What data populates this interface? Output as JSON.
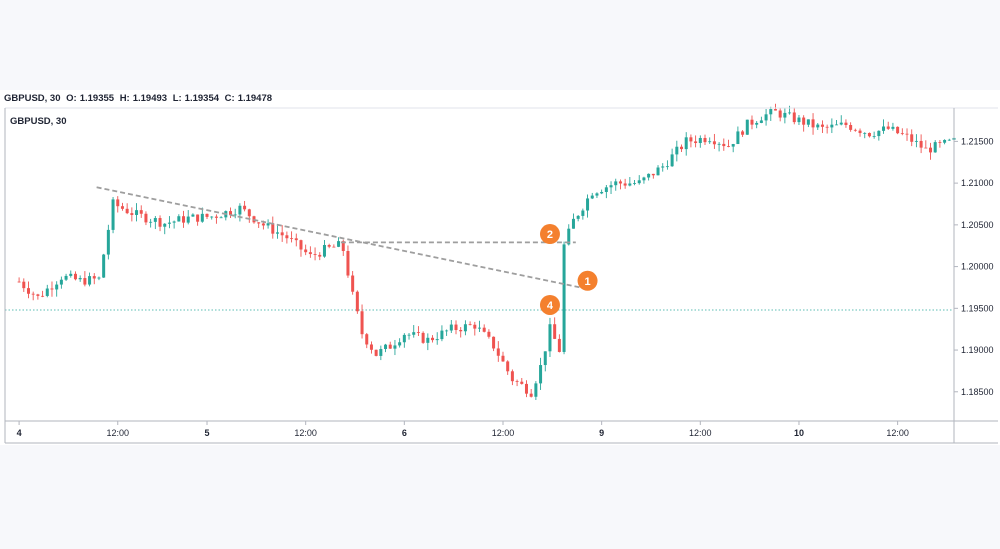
{
  "header": {
    "symbol": "GBPUSD, 30",
    "o_label": "O:",
    "o_value": "1.19355",
    "h_label": "H:",
    "h_value": "1.19493",
    "l_label": "L:",
    "l_value": "1.19354",
    "c_label": "C:",
    "c_value": "1.19478"
  },
  "colors": {
    "up": "#26a69a",
    "down": "#ef5350",
    "trend": "#9e9e9e",
    "marker": "#f4802e",
    "price_line": "#26a69a"
  },
  "chart_data": {
    "type": "candlestick",
    "title": "GBPUSD, 30",
    "ylim": [
      1.1815,
      1.219
    ],
    "y_ticks": [
      "1.18500",
      "1.19000",
      "1.19500",
      "1.20000",
      "1.20500",
      "1.21000",
      "1.21500"
    ],
    "x_ticks": [
      {
        "label": "4",
        "t": 0
      },
      {
        "label": "12:00",
        "t": 21
      },
      {
        "label": "5",
        "t": 40
      },
      {
        "label": "12:00",
        "t": 61
      },
      {
        "label": "6",
        "t": 82
      },
      {
        "label": "12:00",
        "t": 103
      },
      {
        "label": "9",
        "t": 124
      },
      {
        "label": "12:00",
        "t": 145
      },
      {
        "label": "10",
        "t": 166
      },
      {
        "label": "12:00",
        "t": 187
      }
    ],
    "t_range": [
      -3,
      199
    ],
    "price_line": 1.1948,
    "trend_lines": [
      {
        "from": [
          16.5,
          1.2095
        ],
        "to": [
          119.5,
          1.1975
        ],
        "style": "dashed"
      },
      {
        "from": [
          68.5,
          1.2029
        ],
        "to": [
          118.5,
          1.2029
        ],
        "style": "dashed"
      }
    ],
    "markers": [
      {
        "label": "2",
        "t": 113,
        "y": 1.2039
      },
      {
        "label": "1",
        "t": 121,
        "y": 1.1983
      },
      {
        "label": "4",
        "t": 113,
        "y": 1.1954
      }
    ],
    "keypoints": [
      [
        0,
        1.1982
      ],
      [
        4,
        1.1963
      ],
      [
        9,
        1.1988
      ],
      [
        13,
        1.1983
      ],
      [
        17,
        1.1985
      ],
      [
        20,
        1.2075
      ],
      [
        25,
        1.2062
      ],
      [
        31,
        1.2052
      ],
      [
        36,
        1.2058
      ],
      [
        41,
        1.206
      ],
      [
        47,
        1.207
      ],
      [
        52,
        1.205
      ],
      [
        57,
        1.2035
      ],
      [
        62,
        1.2012
      ],
      [
        65,
        1.202
      ],
      [
        68,
        1.2025
      ],
      [
        69,
        1.202
      ],
      [
        71,
        1.1965
      ],
      [
        73,
        1.192
      ],
      [
        76,
        1.1895
      ],
      [
        79,
        1.1905
      ],
      [
        82,
        1.192
      ],
      [
        87,
        1.1912
      ],
      [
        92,
        1.1925
      ],
      [
        97,
        1.193
      ],
      [
        101,
        1.1905
      ],
      [
        105,
        1.1865
      ],
      [
        109,
        1.185
      ],
      [
        111,
        1.188
      ],
      [
        113,
        1.1925
      ],
      [
        115,
        1.19
      ],
      [
        116,
        1.2025
      ],
      [
        118,
        1.2055
      ],
      [
        122,
        1.209
      ],
      [
        127,
        1.21
      ],
      [
        132,
        1.21
      ],
      [
        137,
        1.212
      ],
      [
        142,
        1.215
      ],
      [
        147,
        1.2155
      ],
      [
        151,
        1.2145
      ],
      [
        155,
        1.217
      ],
      [
        158,
        1.218
      ],
      [
        161,
        1.2185
      ],
      [
        166,
        1.2175
      ],
      [
        171,
        1.2165
      ],
      [
        176,
        1.217
      ],
      [
        181,
        1.216
      ],
      [
        185,
        1.2165
      ],
      [
        189,
        1.2155
      ],
      [
        193,
        1.214
      ],
      [
        196,
        1.2145
      ],
      [
        199,
        1.215
      ]
    ]
  }
}
